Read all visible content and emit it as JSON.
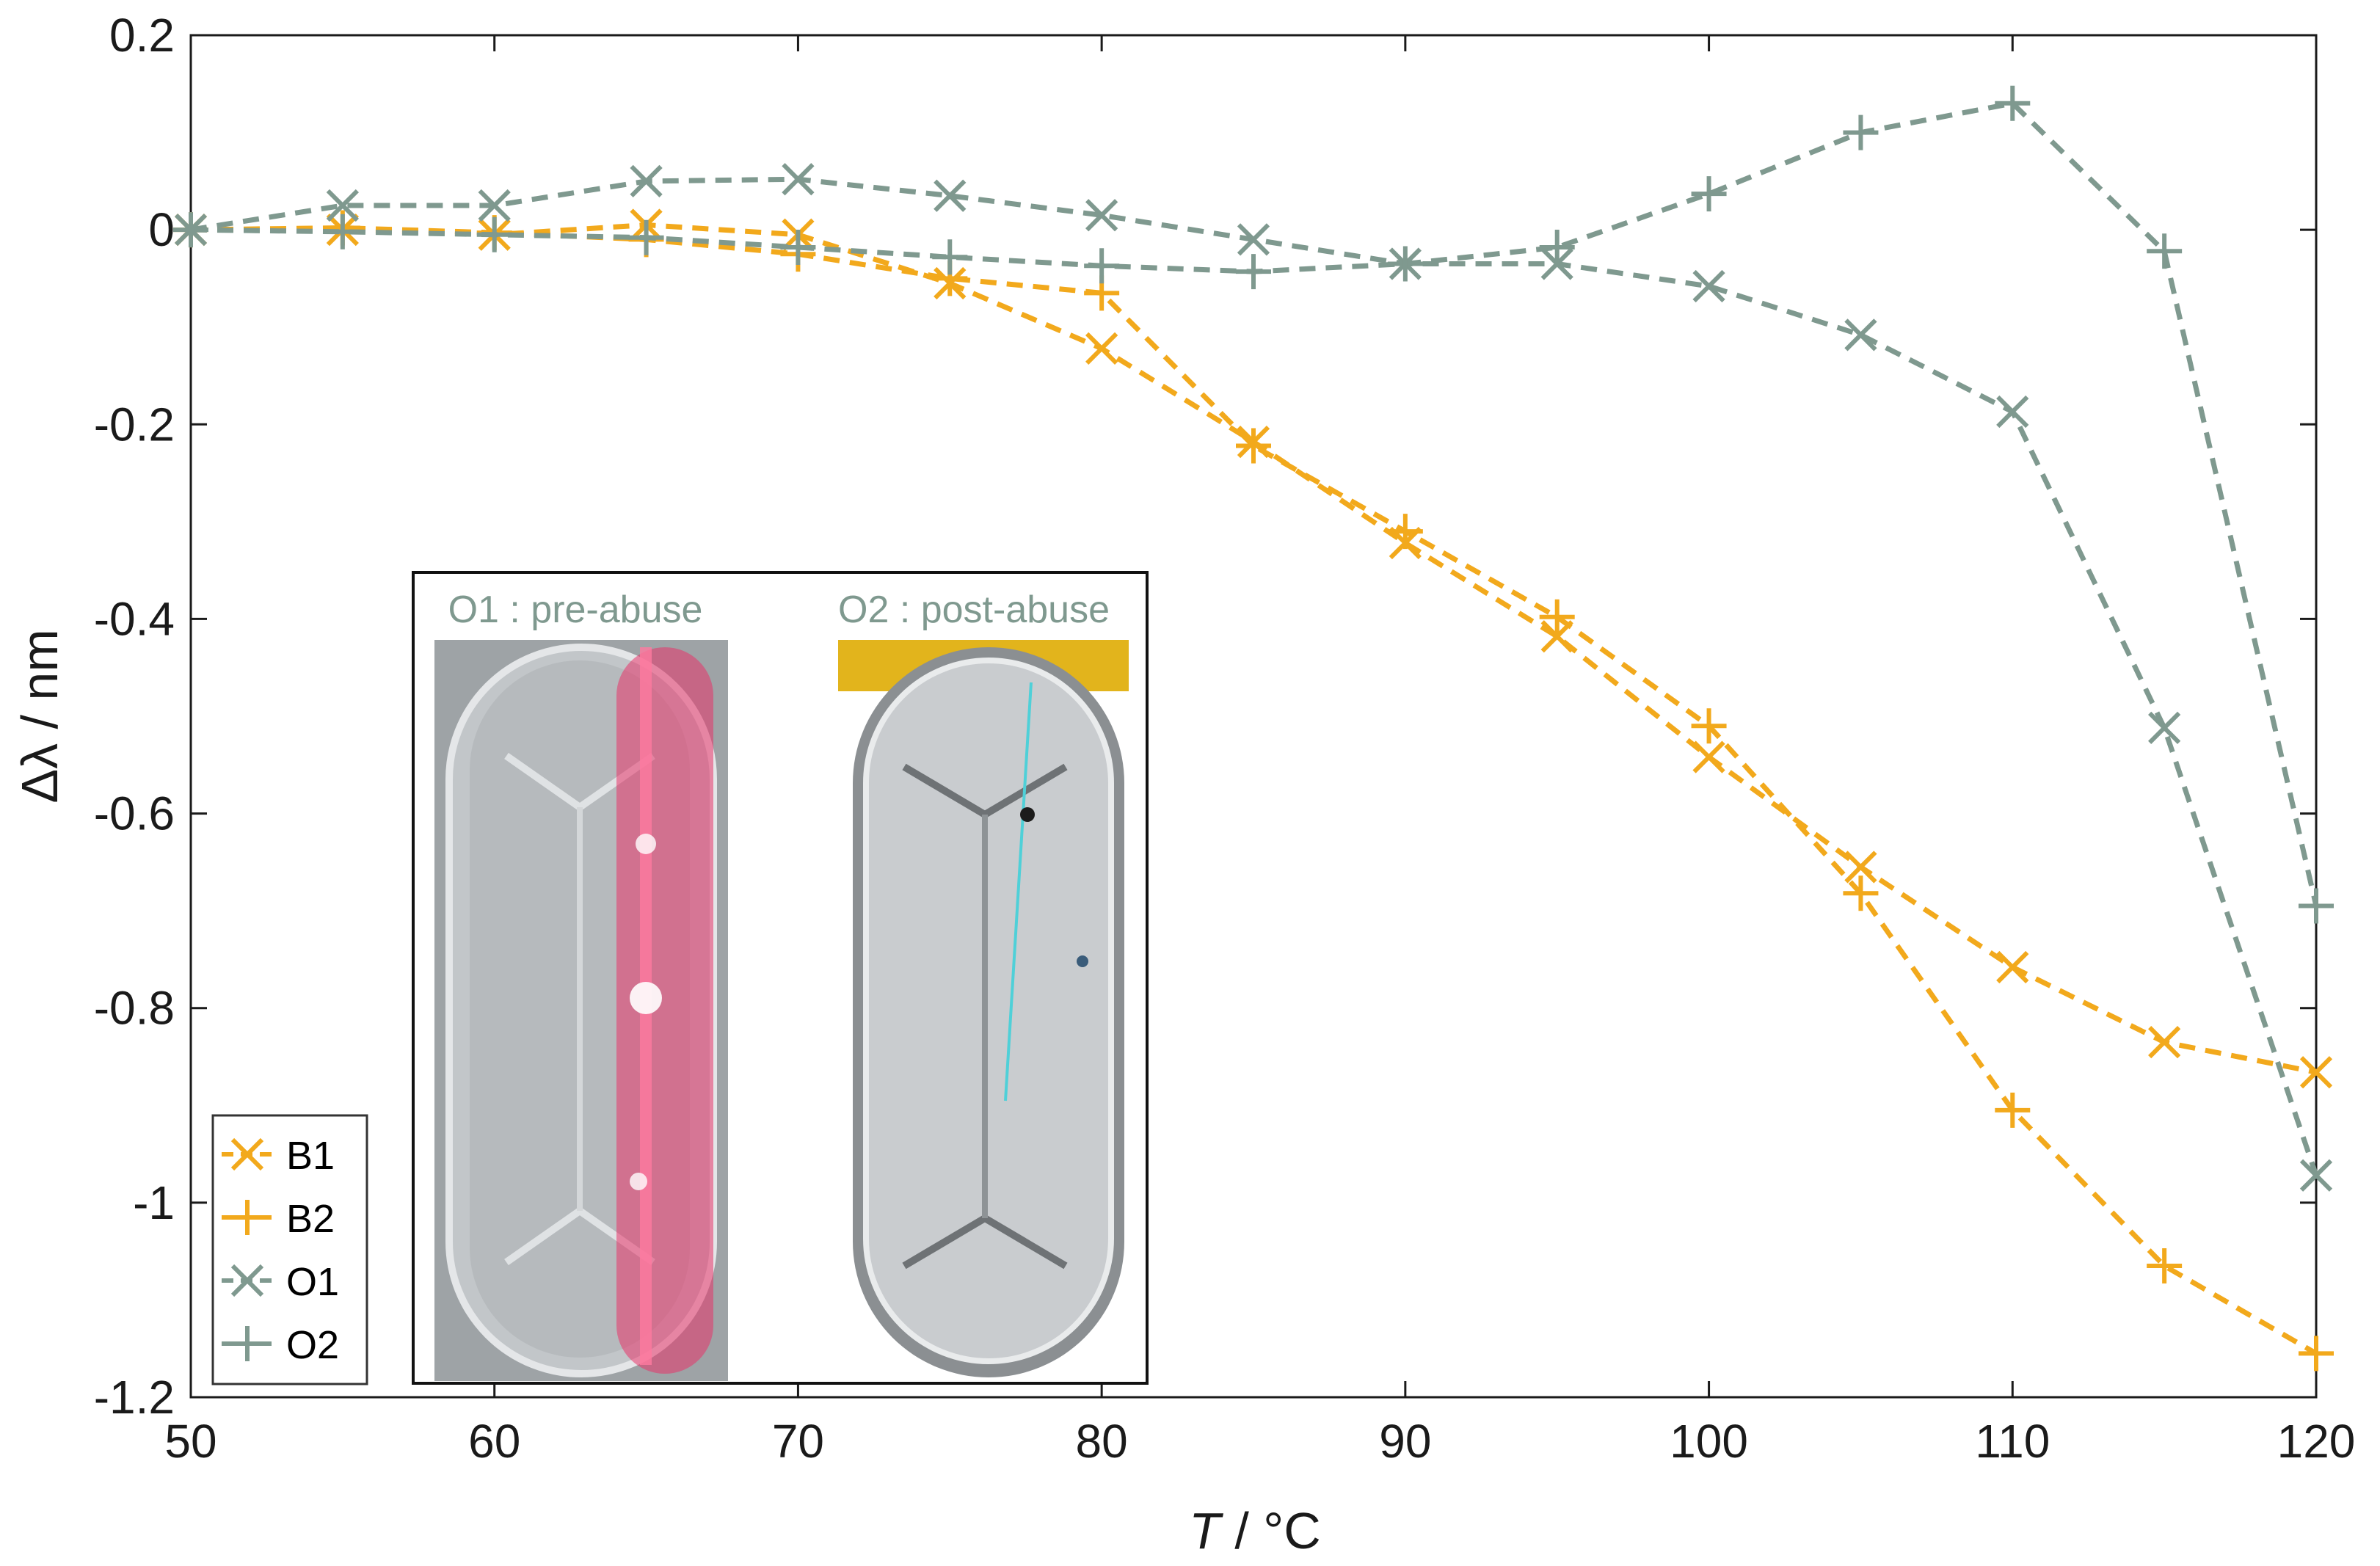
{
  "chart_data": {
    "type": "line",
    "title": "",
    "xlabel_var": "T",
    "xlabel_unit": " / °C",
    "ylabel": "Δλ / nm",
    "xlim": [
      50,
      120
    ],
    "ylim": [
      -1.2,
      0.2
    ],
    "xticks": [
      50,
      60,
      70,
      80,
      90,
      100,
      110,
      120
    ],
    "yticks": [
      0.2,
      0,
      -0.2,
      -0.4,
      -0.6,
      -0.8,
      -1,
      -1.2
    ],
    "xtick_labels": [
      "50",
      "60",
      "70",
      "80",
      "90",
      "100",
      "110",
      "120"
    ],
    "ytick_labels": [
      "0.2",
      "0",
      "-0.2",
      "-0.4",
      "-0.6",
      "-0.8",
      "-1",
      "-1.2"
    ],
    "grid": false,
    "legend_position": "bottom-left",
    "x": [
      50,
      55,
      60,
      65,
      70,
      75,
      80,
      85,
      90,
      95,
      100,
      105,
      110,
      115,
      120
    ],
    "series": [
      {
        "name": "B1",
        "marker": "x",
        "color": "#f2a91c",
        "values": [
          0,
          0.0,
          -0.005,
          0.005,
          -0.005,
          -0.055,
          -0.122,
          -0.218,
          -0.322,
          -0.418,
          -0.542,
          -0.655,
          -0.758,
          -0.835,
          -0.866
        ]
      },
      {
        "name": "B2",
        "marker": "+",
        "color": "#f2a91c",
        "values": [
          0,
          0.002,
          -0.003,
          -0.01,
          -0.025,
          -0.05,
          -0.065,
          -0.222,
          -0.31,
          -0.398,
          -0.51,
          -0.682,
          -0.905,
          -1.065,
          -1.155
        ]
      },
      {
        "name": "O1",
        "marker": "x",
        "color": "#7f998f",
        "values": [
          0,
          0.025,
          0.025,
          0.05,
          0.052,
          0.035,
          0.015,
          -0.01,
          -0.035,
          -0.035,
          -0.058,
          -0.108,
          -0.187,
          -0.512,
          -0.972
        ]
      },
      {
        "name": "O2",
        "marker": "+",
        "color": "#7f998f",
        "values": [
          0,
          -0.002,
          -0.005,
          -0.008,
          -0.018,
          -0.028,
          -0.037,
          -0.043,
          -0.035,
          -0.018,
          0.037,
          0.1,
          0.13,
          -0.022,
          -0.695
        ]
      }
    ],
    "inset": {
      "left_caption": "O1 : pre-abuse",
      "right_caption": "O2 : post-abuse",
      "caption_color": "#7f998f"
    }
  }
}
